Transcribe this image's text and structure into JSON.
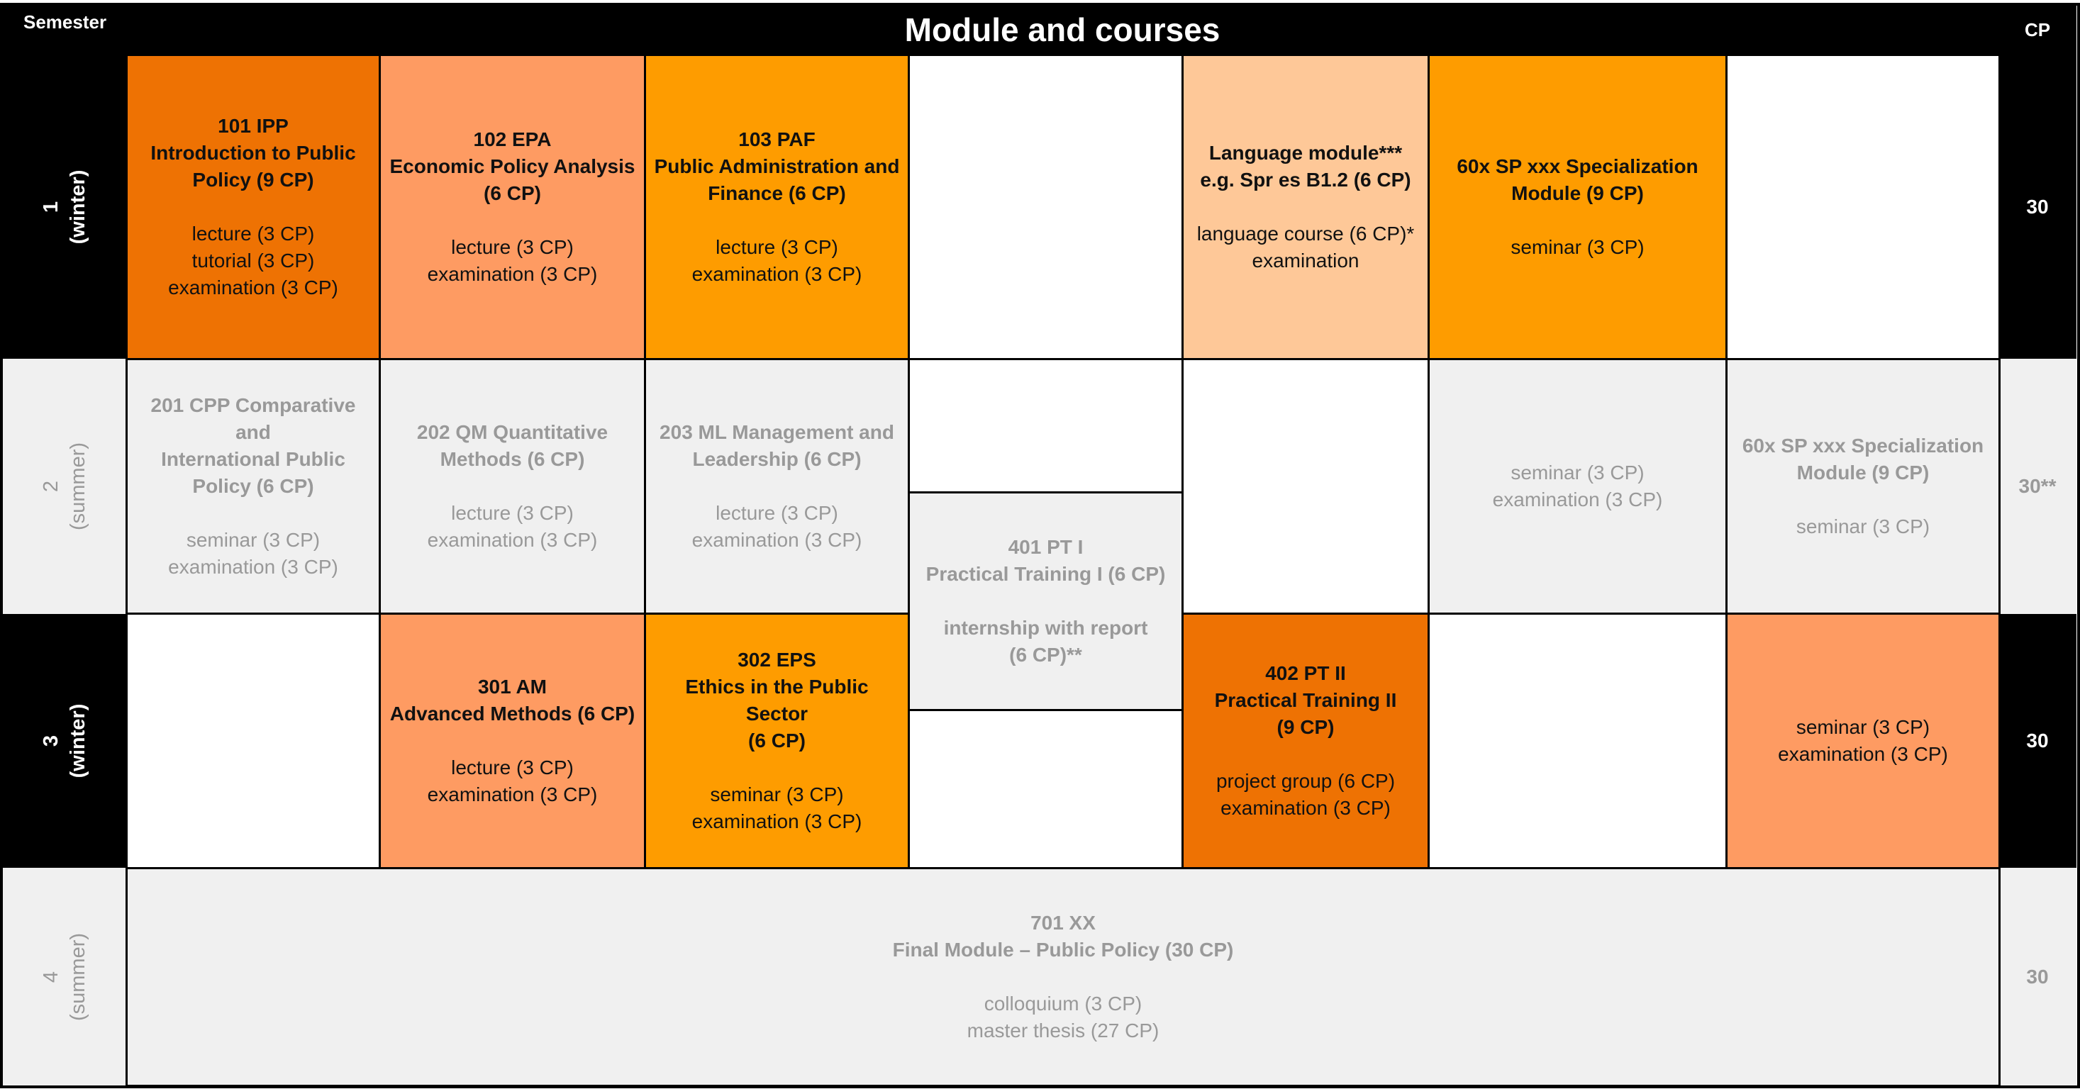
{
  "header": {
    "semester_label": "Semester",
    "title": "Module and courses",
    "cp_label": "CP"
  },
  "semesters": [
    {
      "num": "1",
      "season": "(winter)",
      "cp": "30"
    },
    {
      "num": "2",
      "season": "(summer)",
      "cp": "30**"
    },
    {
      "num": "3",
      "season": "(winter)",
      "cp": "30"
    },
    {
      "num": "4",
      "season": "(summer)",
      "cp": "30"
    }
  ],
  "colors": {
    "dark_orange": "#ee7203",
    "salmon": "#fe9b62",
    "orange": "#fe9c00",
    "peach": "#fec898",
    "grey": "#f0f0f0",
    "black": "#000000"
  },
  "modules": {
    "m101": {
      "title": [
        "101 IPP",
        "Introduction to Public",
        "Policy (9 CP)"
      ],
      "courses": [
        "lecture  (3 CP)",
        "tutorial  (3 CP)",
        "examination  (3 CP)"
      ]
    },
    "m102": {
      "title": [
        "102 EPA",
        "Economic Policy Analysis",
        "(6 CP)"
      ],
      "courses": [
        "lecture  (3 CP)",
        "examination  (3 CP)"
      ]
    },
    "m103": {
      "title": [
        "103 PAF",
        "Public Administration and",
        "Finance (6 CP)"
      ],
      "courses": [
        "lecture  (3 CP)",
        "examination  (3 CP)"
      ]
    },
    "lang": {
      "title": [
        "Language module***",
        "e.g. Spr es B1.2 (6 CP)"
      ],
      "courses": [
        "language course  (6 CP)*",
        "examination"
      ]
    },
    "sp1": {
      "title": [
        "60x SP xxx Specialization",
        "Module (9 CP)"
      ],
      "courses": [
        "seminar  (3 CP)"
      ]
    },
    "m201": {
      "title": [
        "201 CPP Comparative and",
        "International Public",
        "Policy (6 CP)"
      ],
      "courses": [
        "seminar  (3 CP)",
        "examination  (3 CP)"
      ]
    },
    "m202": {
      "title": [
        "202 QM Quantitative",
        "Methods (6 CP)"
      ],
      "courses": [
        "lecture  (3 CP)",
        "examination  (3 CP)"
      ]
    },
    "m203": {
      "title": [
        "203 ML Management and",
        "Leadership (6 CP)"
      ],
      "courses": [
        "lecture  (3 CP)",
        "examination  (3 CP)"
      ]
    },
    "m401": {
      "title": [
        "401 PT I",
        "Practical Training I (6 CP)"
      ],
      "courses": [
        "internship with report",
        "(6 CP)**"
      ]
    },
    "sp2a": {
      "title": [],
      "courses": [
        "seminar  (3 CP)",
        "examination  (3 CP)"
      ]
    },
    "sp2b": {
      "title": [
        "60x SP xxx Specialization",
        "Module (9 CP)"
      ],
      "courses": [
        "seminar  (3 CP)"
      ]
    },
    "m301": {
      "title": [
        "301 AM",
        "Advanced Methods (6 CP)"
      ],
      "courses": [
        "lecture  (3 CP)",
        "examination  (3 CP)"
      ]
    },
    "m302": {
      "title": [
        "302 EPS",
        "Ethics in the Public Sector",
        "(6 CP)"
      ],
      "courses": [
        "seminar  (3 CP)",
        "examination  (3 CP)"
      ]
    },
    "m402": {
      "title": [
        "402 PT II",
        "Practical Training II",
        "(9 CP)"
      ],
      "courses": [
        "project group  (6 CP)",
        "examination  (3 CP)"
      ]
    },
    "sp3": {
      "title": [],
      "courses": [
        "seminar  (3 CP)",
        "examination  (3 CP)"
      ]
    },
    "m701": {
      "title": [
        "701 XX",
        "Final Module – Public Policy (30 CP)"
      ],
      "courses": [
        "colloquium  (3 CP)",
        "master thesis  (27 CP)"
      ]
    }
  }
}
